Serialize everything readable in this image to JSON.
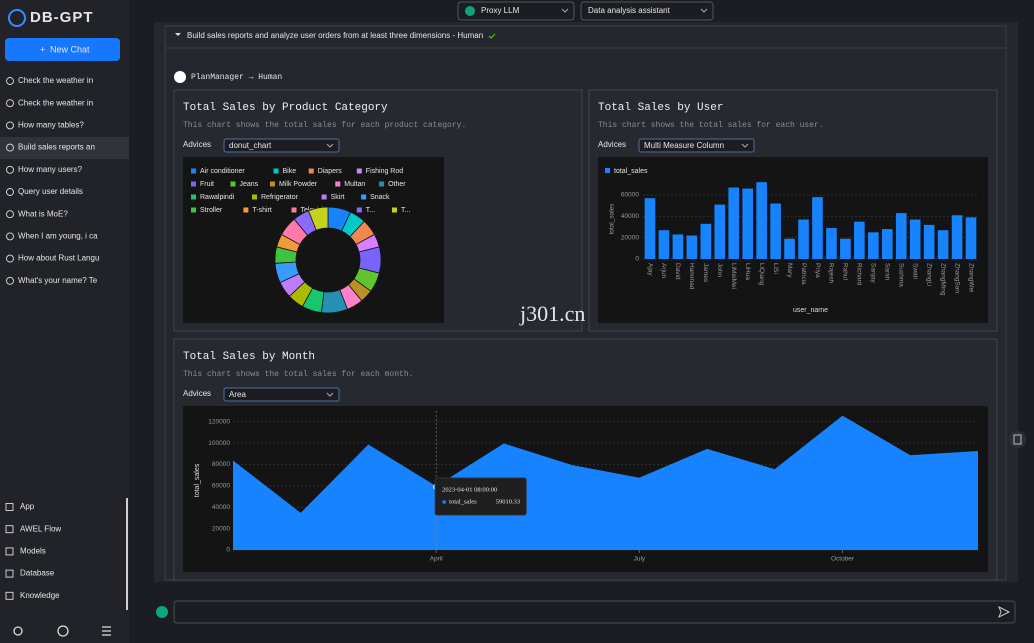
{
  "sidebar": {
    "logo": "DB-GPT",
    "new_chat": "New Chat",
    "chats": [
      "Check the weather in",
      "Check the weather in",
      "How many tables?",
      "Build sales reports an",
      "How many users?",
      "Query user details",
      "What is MoE?",
      "When I am young, i ca",
      "How about Rust Langu",
      "What's your name? Te"
    ],
    "nav": [
      "App",
      "AWEL Flow",
      "Models",
      "Database",
      "Knowledge"
    ]
  },
  "topbar": {
    "model": "Proxy LLM",
    "app": "Data analysis assistant"
  },
  "message": {
    "question": "Build sales reports and analyze user orders from at least three dimensions - Human",
    "route": "PlanManager → Human"
  },
  "watermark": "j301.cn",
  "chart_data": [
    {
      "type": "pie",
      "title": "Total Sales by Product Category",
      "description": "This chart shows the total sales for each product category.",
      "advices_label": "Advices",
      "advice": "donut_chart",
      "categories": [
        "Air conditioner",
        "Bike",
        "Diapers",
        "Fishing Rod",
        "Fruit",
        "Jeans",
        "Milk Powder",
        "Multan",
        "Other",
        "Rawalpindi",
        "Refrigerator",
        "Skirt",
        "Snack",
        "Stroller",
        "T-shirt",
        "Televisi...",
        "T...",
        "T..."
      ],
      "values": [
        7,
        5,
        5,
        4,
        8,
        6,
        4,
        5,
        8,
        6,
        5,
        5,
        6,
        5,
        4,
        6,
        5,
        6
      ],
      "colors": [
        "#1783ff",
        "#00c9c9",
        "#f0884d",
        "#d580ff",
        "#7863ff",
        "#60c42d",
        "#bd8f24",
        "#ff80ca",
        "#2491b3",
        "#17c76f",
        "#aaba01",
        "#bc7cfc",
        "#3a9bff",
        "#3ec43e",
        "#f59a3a",
        "#ff7aa8",
        "#8a6bff",
        "#c5d11a"
      ]
    },
    {
      "type": "bar",
      "title": "Total Sales by User",
      "description": "This chart shows the total sales for each user.",
      "advices_label": "Advices",
      "advice": "Multi Measure Column",
      "categories": [
        "Ajay",
        "Arjun",
        "David",
        "Hammad",
        "James",
        "John",
        "LiMeiMei",
        "LiHua",
        "LiQiang",
        "LiSi",
        "Mary",
        "Patricia",
        "Priya",
        "Rajesh",
        "Rahul",
        "Richard",
        "Sanjay",
        "Sarah",
        "Sushma",
        "Swati",
        "ZhangLi",
        "ZhangMing",
        "ZhangSan",
        "ZhangWei"
      ],
      "series": [
        {
          "name": "total_sales",
          "color": "#1783ff",
          "values": [
            57000,
            27000,
            23000,
            22000,
            33000,
            51000,
            67000,
            66000,
            72000,
            52000,
            19000,
            37000,
            58000,
            29000,
            19000,
            35000,
            25000,
            28000,
            43000,
            37000,
            32000,
            27000,
            41000,
            39000
          ]
        }
      ],
      "x_label": "user_name",
      "y_label": "total_sales",
      "ylim": [
        0,
        75000
      ],
      "yticks": [
        0,
        20000,
        40000,
        60000
      ],
      "grid": true
    },
    {
      "type": "area",
      "title": "Total Sales by Month",
      "description": "This chart shows the total sales for each month.",
      "advices_label": "Advices",
      "advice": "Area",
      "categories": [
        null,
        null,
        null,
        "April",
        null,
        null,
        "July",
        null,
        null,
        "October",
        null,
        null
      ],
      "series": [
        {
          "name": "total_sales",
          "color": "#1783ff",
          "values": [
            83000,
            34000,
            98000,
            59010.33,
            99000,
            79000,
            67000,
            94000,
            75000,
            125000,
            88000,
            92000
          ]
        }
      ],
      "y_label": "total_sales",
      "ylim": [
        0,
        130000
      ],
      "yticks": [
        0,
        20000,
        40000,
        60000,
        80000,
        100000,
        120000
      ],
      "grid": true,
      "tooltip": {
        "title": "2023-04-01 08:00:00",
        "name": "total_sales",
        "value": 59010.33
      }
    }
  ]
}
